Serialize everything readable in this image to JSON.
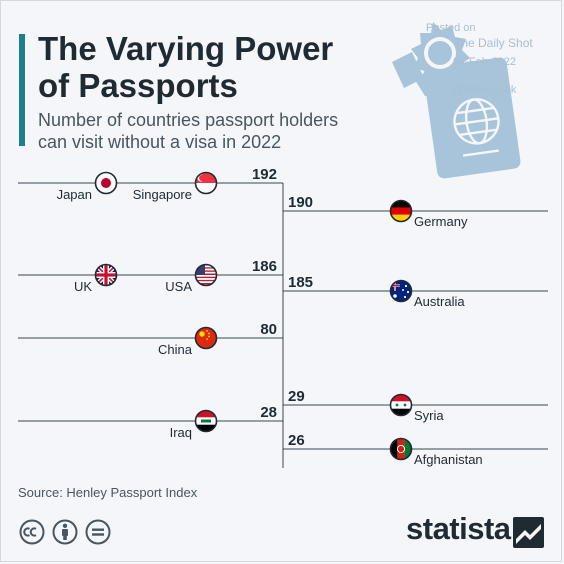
{
  "title_lines": [
    "The Varying Power",
    "of Passports"
  ],
  "subtitle_lines": [
    "Number of countries passport holders",
    "can visit without a visa in 2022"
  ],
  "watermark": {
    "line1": "Posted on",
    "line2": "The Daily Shot",
    "line3": "04-Feb-2022",
    "line4": "@SoberLook"
  },
  "source": "Source: Henley Passport Index",
  "brand": "statista",
  "colors": {
    "accent": "#1e7f8c",
    "text": "#1f2a33",
    "muted": "#4a5560",
    "passport": "#a7c4da",
    "watermark": "#a9bfd3"
  },
  "icons": [
    "passport-badge-icon",
    "cc-icon",
    "by-icon",
    "nd-icon",
    "statista-logo-icon"
  ],
  "chart_data": {
    "type": "bar",
    "title": "The Varying Power of Passports",
    "subtitle": "Number of countries passport holders can visit without a visa in 2022",
    "value_label": "Number of countries passport holders can visit without a visa",
    "groups": [
      {
        "side": "left",
        "value": 192,
        "countries": [
          "Japan",
          "Singapore"
        ]
      },
      {
        "side": "right",
        "value": 190,
        "countries": [
          "Germany"
        ]
      },
      {
        "side": "left",
        "value": 186,
        "countries": [
          "UK",
          "USA"
        ]
      },
      {
        "side": "right",
        "value": 185,
        "countries": [
          "Australia"
        ]
      },
      {
        "side": "left",
        "value": 80,
        "countries": [
          "China"
        ]
      },
      {
        "side": "right",
        "value": 29,
        "countries": [
          "Syria"
        ]
      },
      {
        "side": "left",
        "value": 28,
        "countries": [
          "Iraq"
        ]
      },
      {
        "side": "right",
        "value": 26,
        "countries": [
          "Afghanistan"
        ]
      }
    ],
    "data": [
      {
        "country": "Japan",
        "value": 192
      },
      {
        "country": "Singapore",
        "value": 192
      },
      {
        "country": "Germany",
        "value": 190
      },
      {
        "country": "UK",
        "value": 186
      },
      {
        "country": "USA",
        "value": 186
      },
      {
        "country": "Australia",
        "value": 185
      },
      {
        "country": "China",
        "value": 80
      },
      {
        "country": "Syria",
        "value": 29
      },
      {
        "country": "Iraq",
        "value": 28
      },
      {
        "country": "Afghanistan",
        "value": 26
      }
    ]
  }
}
